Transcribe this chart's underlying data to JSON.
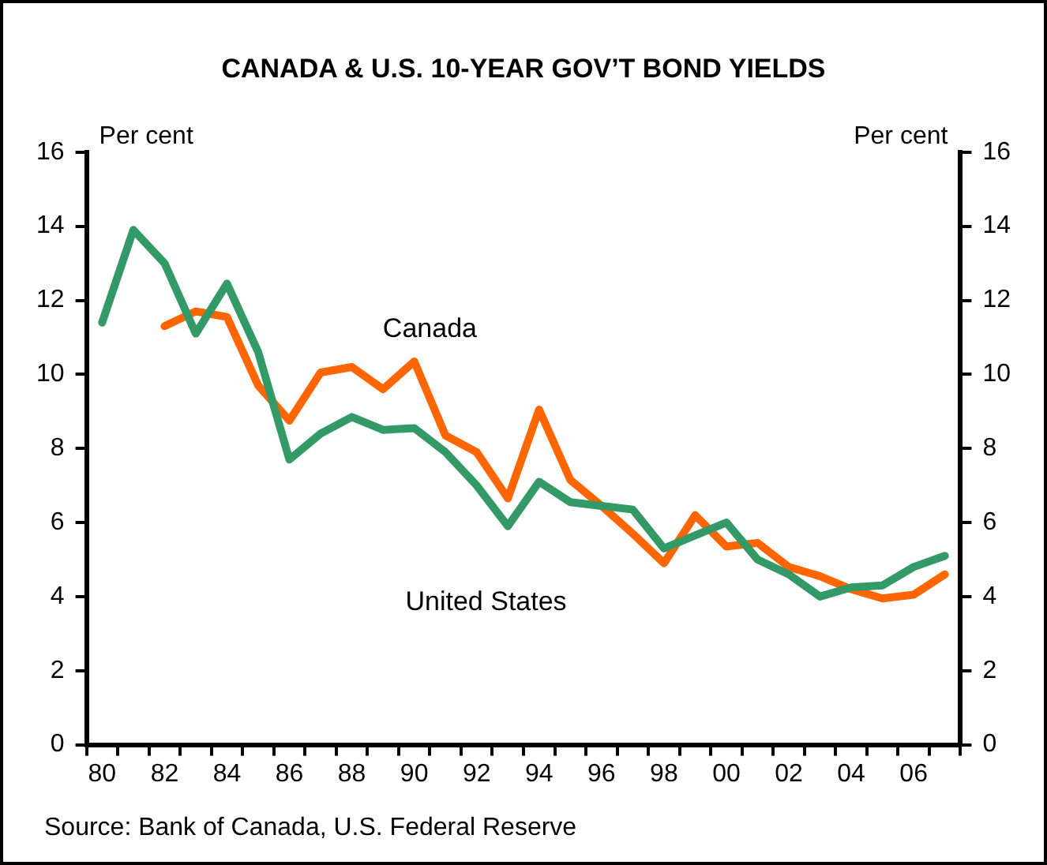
{
  "chart_data": {
    "type": "line",
    "title": "CANADA & U.S. 10-YEAR GOV’T BOND YIELDS",
    "ylabel": "Per cent",
    "y2label": "Per cent",
    "categories": [
      "80",
      null,
      "82",
      null,
      "84",
      null,
      "86",
      null,
      "88",
      null,
      "90",
      null,
      "92",
      null,
      "94",
      null,
      "96",
      null,
      "98",
      null,
      "00",
      null,
      "02",
      null,
      "04",
      null,
      "06",
      null
    ],
    "series": [
      {
        "name": "United States",
        "color": "#339966",
        "values": [
          11.4,
          13.9,
          13.0,
          11.1,
          12.45,
          10.6,
          7.7,
          8.4,
          8.85,
          8.5,
          8.55,
          7.9,
          7.0,
          5.9,
          7.1,
          6.55,
          6.45,
          6.35,
          5.3,
          5.65,
          6.0,
          5.0,
          4.6,
          4.0,
          4.25,
          4.3,
          4.8,
          5.1
        ]
      },
      {
        "name": "Canada",
        "color": "#ff6600",
        "values": [
          null,
          null,
          11.3,
          11.7,
          11.55,
          9.7,
          8.75,
          10.05,
          10.2,
          9.6,
          10.35,
          8.35,
          7.9,
          6.65,
          9.05,
          7.15,
          6.45,
          5.7,
          4.9,
          6.2,
          5.35,
          5.45,
          4.8,
          4.55,
          4.2,
          3.95,
          4.05,
          4.6
        ]
      }
    ],
    "ylim": [
      0,
      16
    ],
    "yticks": [
      0,
      2,
      4,
      6,
      8,
      10,
      12,
      14,
      16
    ],
    "y2lim": [
      0,
      16
    ],
    "y2ticks": [
      0,
      2,
      4,
      6,
      8,
      10,
      12,
      14,
      16
    ],
    "grid": false,
    "legend": false,
    "marker": "none",
    "line_style": "solid",
    "annotations": [
      "Source:  Bank of Canada, U.S. Federal Reserve"
    ]
  }
}
